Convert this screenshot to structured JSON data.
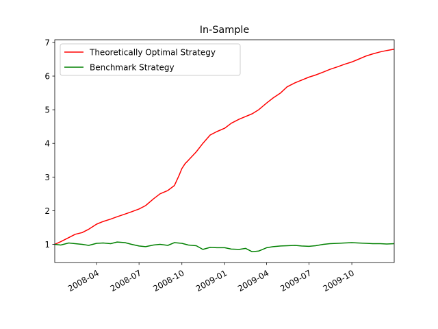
{
  "chart_data": {
    "type": "line",
    "title": "In-Sample",
    "xlabel": "",
    "ylabel": "",
    "xlim": [
      "2008-01-02",
      "2009-12-31"
    ],
    "ylim": [
      0.46,
      7.08
    ],
    "x_ticks": [
      {
        "date": "2008-04-01",
        "label": "2008-04"
      },
      {
        "date": "2008-07-01",
        "label": "2008-07"
      },
      {
        "date": "2008-10-01",
        "label": "2008-10"
      },
      {
        "date": "2009-01-01",
        "label": "2009-01"
      },
      {
        "date": "2009-04-01",
        "label": "2009-04"
      },
      {
        "date": "2009-07-01",
        "label": "2009-07"
      },
      {
        "date": "2009-10-01",
        "label": "2009-10"
      }
    ],
    "y_ticks": [
      1,
      2,
      3,
      4,
      5,
      6,
      7
    ],
    "grid": false,
    "legend": "top-left",
    "series": [
      {
        "name": "Theoretically Optimal Strategy",
        "color": "#ff0000",
        "points": [
          [
            "2008-01-02",
            1.0
          ],
          [
            "2008-01-15",
            1.08
          ],
          [
            "2008-02-01",
            1.2
          ],
          [
            "2008-02-15",
            1.3
          ],
          [
            "2008-03-01",
            1.35
          ],
          [
            "2008-03-15",
            1.45
          ],
          [
            "2008-04-01",
            1.6
          ],
          [
            "2008-04-15",
            1.68
          ],
          [
            "2008-05-01",
            1.75
          ],
          [
            "2008-05-15",
            1.82
          ],
          [
            "2008-06-01",
            1.9
          ],
          [
            "2008-06-15",
            1.97
          ],
          [
            "2008-07-01",
            2.05
          ],
          [
            "2008-07-15",
            2.15
          ],
          [
            "2008-08-01",
            2.35
          ],
          [
            "2008-08-15",
            2.5
          ],
          [
            "2008-09-01",
            2.6
          ],
          [
            "2008-09-15",
            2.75
          ],
          [
            "2008-09-25",
            3.05
          ],
          [
            "2008-10-01",
            3.25
          ],
          [
            "2008-10-08",
            3.4
          ],
          [
            "2008-10-15",
            3.5
          ],
          [
            "2008-11-01",
            3.75
          ],
          [
            "2008-11-15",
            4.0
          ],
          [
            "2008-12-01",
            4.25
          ],
          [
            "2008-12-15",
            4.35
          ],
          [
            "2009-01-01",
            4.45
          ],
          [
            "2009-01-15",
            4.6
          ],
          [
            "2009-02-01",
            4.72
          ],
          [
            "2009-02-15",
            4.8
          ],
          [
            "2009-03-01",
            4.88
          ],
          [
            "2009-03-15",
            5.0
          ],
          [
            "2009-04-01",
            5.2
          ],
          [
            "2009-04-15",
            5.35
          ],
          [
            "2009-05-01",
            5.5
          ],
          [
            "2009-05-15",
            5.68
          ],
          [
            "2009-06-01",
            5.8
          ],
          [
            "2009-06-15",
            5.88
          ],
          [
            "2009-07-01",
            5.97
          ],
          [
            "2009-07-15",
            6.03
          ],
          [
            "2009-08-01",
            6.12
          ],
          [
            "2009-08-15",
            6.2
          ],
          [
            "2009-09-01",
            6.28
          ],
          [
            "2009-09-15",
            6.35
          ],
          [
            "2009-10-01",
            6.42
          ],
          [
            "2009-10-15",
            6.5
          ],
          [
            "2009-11-01",
            6.6
          ],
          [
            "2009-11-15",
            6.66
          ],
          [
            "2009-12-01",
            6.72
          ],
          [
            "2009-12-15",
            6.76
          ],
          [
            "2009-12-31",
            6.8
          ]
        ]
      },
      {
        "name": "Benchmark Strategy",
        "color": "#008000",
        "points": [
          [
            "2008-01-02",
            1.0
          ],
          [
            "2008-01-15",
            0.98
          ],
          [
            "2008-02-01",
            1.04
          ],
          [
            "2008-02-15",
            1.02
          ],
          [
            "2008-03-01",
            1.0
          ],
          [
            "2008-03-15",
            0.97
          ],
          [
            "2008-04-01",
            1.03
          ],
          [
            "2008-04-15",
            1.04
          ],
          [
            "2008-05-01",
            1.02
          ],
          [
            "2008-05-15",
            1.07
          ],
          [
            "2008-06-01",
            1.05
          ],
          [
            "2008-06-15",
            1.0
          ],
          [
            "2008-07-01",
            0.95
          ],
          [
            "2008-07-15",
            0.93
          ],
          [
            "2008-08-01",
            0.98
          ],
          [
            "2008-08-15",
            1.0
          ],
          [
            "2008-09-01",
            0.97
          ],
          [
            "2008-09-15",
            1.05
          ],
          [
            "2008-10-01",
            1.03
          ],
          [
            "2008-10-15",
            0.98
          ],
          [
            "2008-11-01",
            0.96
          ],
          [
            "2008-11-15",
            0.85
          ],
          [
            "2008-12-01",
            0.91
          ],
          [
            "2008-12-15",
            0.9
          ],
          [
            "2009-01-01",
            0.9
          ],
          [
            "2009-01-15",
            0.86
          ],
          [
            "2009-02-01",
            0.85
          ],
          [
            "2009-02-15",
            0.88
          ],
          [
            "2009-03-01",
            0.78
          ],
          [
            "2009-03-15",
            0.8
          ],
          [
            "2009-04-01",
            0.9
          ],
          [
            "2009-04-15",
            0.93
          ],
          [
            "2009-05-01",
            0.95
          ],
          [
            "2009-05-15",
            0.96
          ],
          [
            "2009-06-01",
            0.97
          ],
          [
            "2009-06-15",
            0.95
          ],
          [
            "2009-07-01",
            0.94
          ],
          [
            "2009-07-15",
            0.96
          ],
          [
            "2009-08-01",
            1.0
          ],
          [
            "2009-08-15",
            1.02
          ],
          [
            "2009-09-01",
            1.03
          ],
          [
            "2009-09-15",
            1.04
          ],
          [
            "2009-10-01",
            1.05
          ],
          [
            "2009-10-15",
            1.04
          ],
          [
            "2009-11-01",
            1.03
          ],
          [
            "2009-11-15",
            1.02
          ],
          [
            "2009-12-01",
            1.02
          ],
          [
            "2009-12-15",
            1.01
          ],
          [
            "2009-12-31",
            1.02
          ]
        ]
      }
    ]
  }
}
